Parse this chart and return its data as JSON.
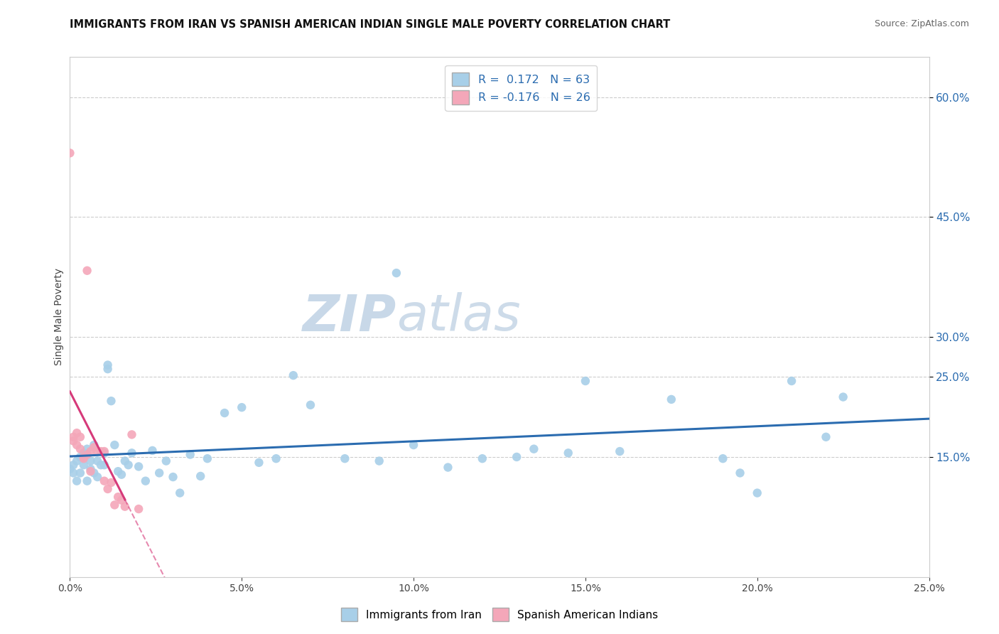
{
  "title": "IMMIGRANTS FROM IRAN VS SPANISH AMERICAN INDIAN SINGLE MALE POVERTY CORRELATION CHART",
  "source": "Source: ZipAtlas.com",
  "ylabel": "Single Male Poverty",
  "x_min": 0.0,
  "x_max": 0.25,
  "y_min": 0.0,
  "y_max": 0.65,
  "series1_color": "#a8cfe8",
  "series2_color": "#f4a7b9",
  "trendline1_color": "#2b6cb0",
  "trendline2_color": "#d63a7a",
  "watermark_zip": "ZIP",
  "watermark_atlas": "atlas",
  "background_color": "#ffffff",
  "blue_scatter_x": [
    0.0,
    0.001,
    0.001,
    0.002,
    0.002,
    0.003,
    0.003,
    0.004,
    0.004,
    0.005,
    0.005,
    0.006,
    0.006,
    0.007,
    0.007,
    0.008,
    0.008,
    0.009,
    0.01,
    0.01,
    0.011,
    0.011,
    0.012,
    0.013,
    0.014,
    0.015,
    0.016,
    0.017,
    0.018,
    0.02,
    0.022,
    0.024,
    0.026,
    0.028,
    0.03,
    0.032,
    0.035,
    0.038,
    0.04,
    0.045,
    0.05,
    0.055,
    0.06,
    0.065,
    0.07,
    0.08,
    0.09,
    0.1,
    0.11,
    0.12,
    0.135,
    0.15,
    0.16,
    0.175,
    0.19,
    0.195,
    0.2,
    0.21,
    0.22,
    0.225,
    0.095,
    0.13,
    0.145
  ],
  "blue_scatter_y": [
    0.135,
    0.13,
    0.14,
    0.145,
    0.12,
    0.15,
    0.13,
    0.155,
    0.14,
    0.12,
    0.16,
    0.135,
    0.145,
    0.165,
    0.13,
    0.125,
    0.145,
    0.14,
    0.155,
    0.14,
    0.26,
    0.265,
    0.22,
    0.165,
    0.132,
    0.128,
    0.145,
    0.14,
    0.155,
    0.138,
    0.12,
    0.158,
    0.13,
    0.145,
    0.125,
    0.105,
    0.153,
    0.126,
    0.148,
    0.205,
    0.212,
    0.143,
    0.148,
    0.252,
    0.215,
    0.148,
    0.145,
    0.165,
    0.137,
    0.148,
    0.16,
    0.245,
    0.157,
    0.222,
    0.148,
    0.13,
    0.105,
    0.245,
    0.175,
    0.225,
    0.38,
    0.15,
    0.155
  ],
  "pink_scatter_x": [
    0.0,
    0.001,
    0.001,
    0.002,
    0.002,
    0.003,
    0.003,
    0.004,
    0.004,
    0.005,
    0.005,
    0.006,
    0.006,
    0.007,
    0.008,
    0.009,
    0.01,
    0.01,
    0.011,
    0.012,
    0.013,
    0.014,
    0.015,
    0.016,
    0.018,
    0.02
  ],
  "pink_scatter_y": [
    0.53,
    0.175,
    0.17,
    0.165,
    0.18,
    0.16,
    0.175,
    0.15,
    0.148,
    0.153,
    0.383,
    0.157,
    0.132,
    0.162,
    0.157,
    0.157,
    0.157,
    0.12,
    0.11,
    0.118,
    0.09,
    0.1,
    0.096,
    0.088,
    0.178,
    0.085
  ],
  "trendline1_x_start": 0.0,
  "trendline1_x_end": 0.25,
  "trendline2_solid_x_start": 0.0,
  "trendline2_solid_x_end": 0.016,
  "trendline2_dash_x_start": 0.016,
  "trendline2_dash_x_end": 0.25
}
